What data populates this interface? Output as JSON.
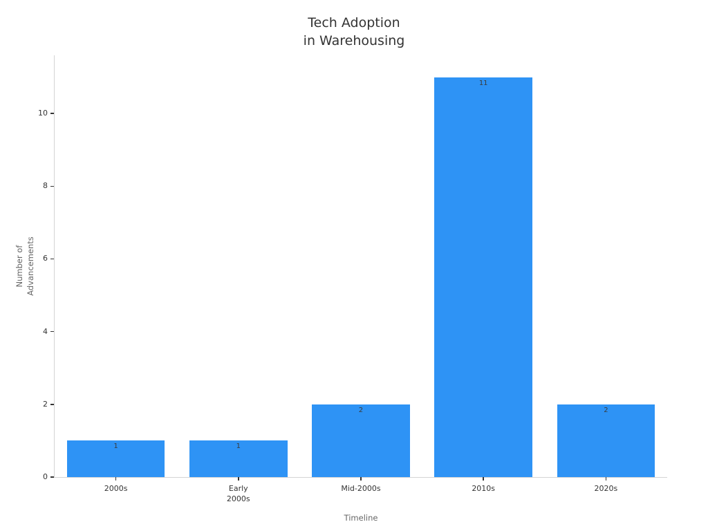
{
  "chart_data": {
    "type": "bar",
    "title": "Tech Adoption\nin Warehousing",
    "xlabel": "Timeline",
    "ylabel": "Number of\nAdvancements",
    "categories": [
      "2000s",
      "Early\n2000s",
      "Mid-2000s",
      "2010s",
      "2020s"
    ],
    "values": [
      1,
      1,
      2,
      11,
      2
    ],
    "bar_labels": [
      "1",
      "1",
      "2",
      "11",
      "2"
    ],
    "ylim": [
      0,
      11.6
    ],
    "yticks": [
      0,
      2,
      4,
      6,
      8,
      10
    ],
    "grid": false,
    "legend": false,
    "bar_color": "#2e93f5",
    "axis_line_color": "#d4d4d4",
    "tick_color": "#333333",
    "title_color": "#333333",
    "axis_label_color": "#666666",
    "value_label_color": "#3a3a3a"
  }
}
